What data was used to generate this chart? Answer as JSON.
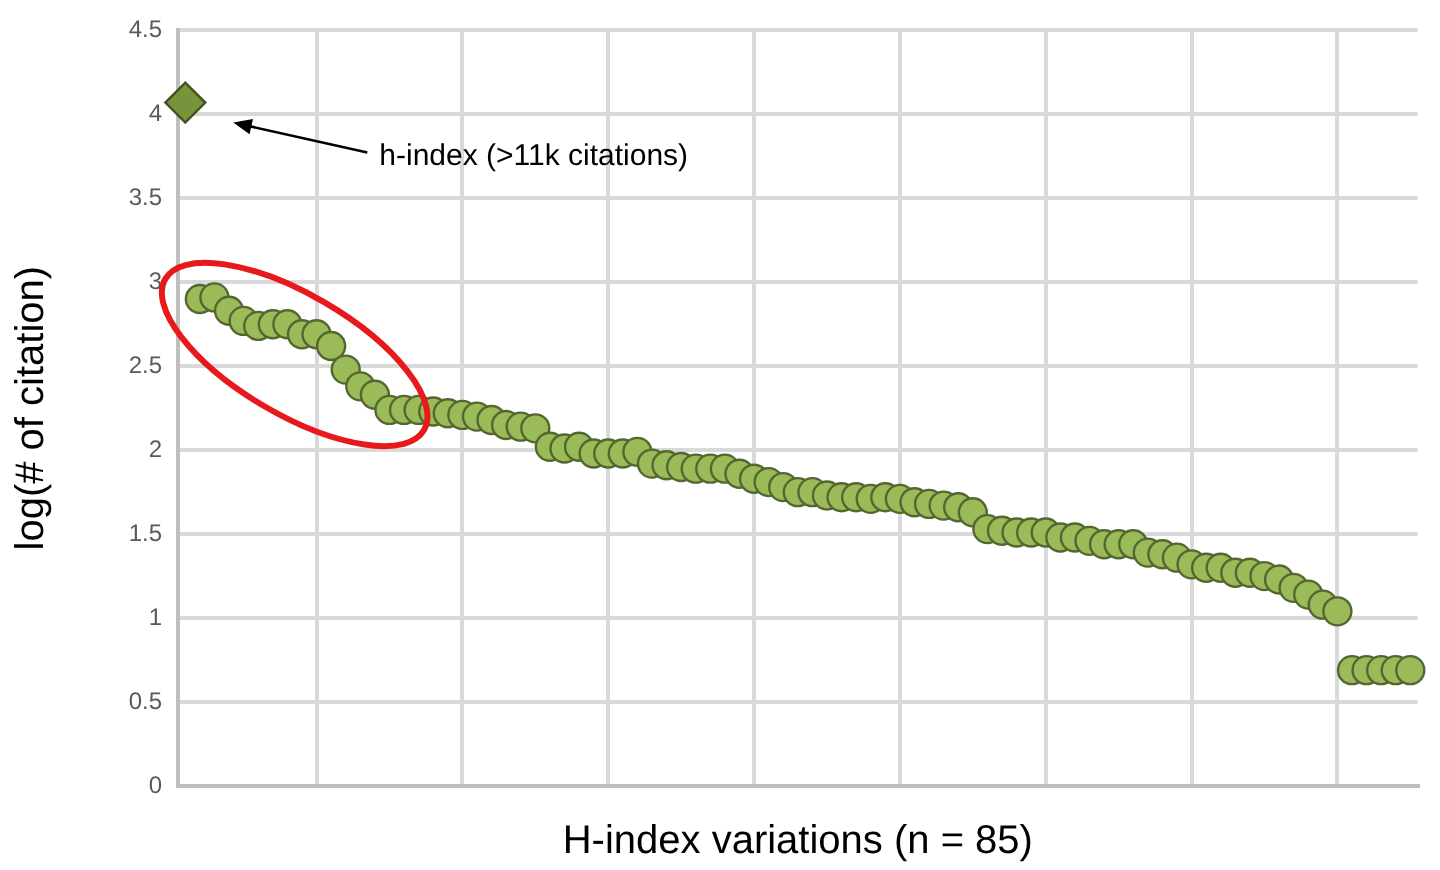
{
  "chart_data": {
    "type": "scatter",
    "xlabel": "H-index variations (n = 85)",
    "ylabel": "log(# of citation)",
    "categories": [
      null,
      null,
      null,
      null,
      null,
      null,
      null,
      null,
      null,
      null,
      null,
      null,
      null,
      null,
      null,
      null,
      null,
      null,
      null,
      null,
      null,
      null,
      null,
      null,
      null,
      null,
      null,
      null,
      null,
      null,
      null,
      null,
      null,
      null,
      null,
      null,
      null,
      null,
      null,
      null,
      null,
      null,
      null,
      null,
      null,
      null,
      null,
      null,
      null,
      null,
      null,
      null,
      null,
      null,
      null,
      null,
      null,
      null,
      null,
      null,
      null,
      null,
      null,
      null,
      null,
      null,
      null,
      null,
      null,
      null,
      null,
      null,
      null,
      null,
      null,
      null,
      null,
      null,
      null,
      null,
      null,
      null,
      null,
      null,
      null
    ],
    "ylim": [
      0,
      4.5
    ],
    "yticks": [
      0,
      0.5,
      1,
      1.5,
      2,
      2.5,
      3,
      3.5,
      4,
      4.5
    ],
    "grid": true,
    "legend": false,
    "annotations": [
      "h-index (>11k citations)"
    ],
    "series": [
      {
        "marker": "diamond",
        "color": "#77933c",
        "values": [
          4.07,
          null,
          null,
          null,
          null,
          null,
          null,
          null,
          null,
          null,
          null,
          null,
          null,
          null,
          null,
          null,
          null,
          null,
          null,
          null,
          null,
          null,
          null,
          null,
          null,
          null,
          null,
          null,
          null,
          null,
          null,
          null,
          null,
          null,
          null,
          null,
          null,
          null,
          null,
          null,
          null,
          null,
          null,
          null,
          null,
          null,
          null,
          null,
          null,
          null,
          null,
          null,
          null,
          null,
          null,
          null,
          null,
          null,
          null,
          null,
          null,
          null,
          null,
          null,
          null,
          null,
          null,
          null,
          null,
          null,
          null,
          null,
          null,
          null,
          null,
          null,
          null,
          null,
          null,
          null,
          null,
          null,
          null,
          null,
          null
        ]
      },
      {
        "marker": "circle",
        "color": "#9bbb59",
        "values": [
          null,
          2.9,
          2.91,
          2.83,
          2.77,
          2.74,
          2.75,
          2.75,
          2.69,
          2.69,
          2.62,
          2.48,
          2.38,
          2.33,
          2.24,
          2.24,
          2.24,
          2.23,
          2.22,
          2.21,
          2.2,
          2.18,
          2.15,
          2.14,
          2.13,
          2.02,
          2.01,
          2.02,
          1.98,
          1.98,
          1.98,
          1.99,
          1.92,
          1.91,
          1.9,
          1.89,
          1.89,
          1.89,
          1.86,
          1.83,
          1.81,
          1.78,
          1.75,
          1.75,
          1.73,
          1.72,
          1.72,
          1.71,
          1.72,
          1.71,
          1.69,
          1.68,
          1.67,
          1.66,
          1.63,
          1.53,
          1.52,
          1.51,
          1.51,
          1.51,
          1.48,
          1.48,
          1.46,
          1.44,
          1.44,
          1.44,
          1.39,
          1.38,
          1.36,
          1.32,
          1.3,
          1.3,
          1.27,
          1.27,
          1.25,
          1.23,
          1.18,
          1.14,
          1.08,
          1.04,
          0.69,
          0.69,
          0.69,
          0.69,
          0.69
        ]
      }
    ]
  }
}
